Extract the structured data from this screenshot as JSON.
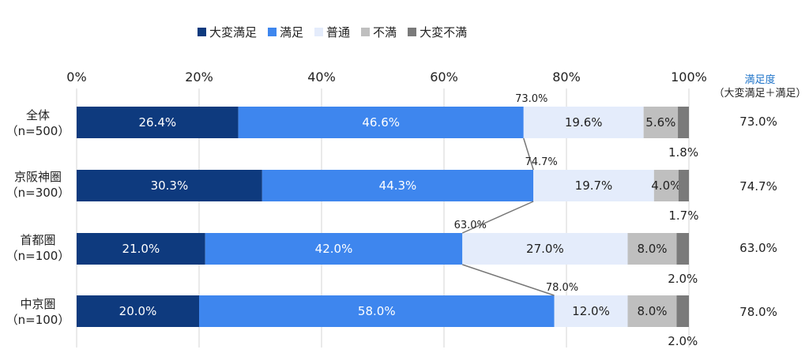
{
  "legend": [
    {
      "name": "大変満足",
      "color": "#0e3a7e"
    },
    {
      "name": "満足",
      "color": "#3e86ee"
    },
    {
      "name": "普通",
      "color": "#e4ecfb"
    },
    {
      "name": "不満",
      "color": "#bfbfbf"
    },
    {
      "name": "大変不満",
      "color": "#7a7a7a"
    }
  ],
  "satisfaction_header": {
    "line1": "満足度",
    "line2": "（大変満足＋満足）"
  },
  "chart_data": {
    "type": "bar",
    "orientation": "horizontal",
    "stacked": true,
    "percent_stacked": true,
    "xlim": [
      0,
      100
    ],
    "x_ticks": [
      "0%",
      "20%",
      "40%",
      "60%",
      "80%",
      "100%"
    ],
    "grid": true,
    "legend_position": "top",
    "categories": [
      {
        "line1": "全体",
        "line2": "（n=500）"
      },
      {
        "line1": "京阪神圏",
        "line2": "（n=300）"
      },
      {
        "line1": "首都圏",
        "line2": "（n=100）"
      },
      {
        "line1": "中京圏",
        "line2": "（n=100）"
      }
    ],
    "series": [
      {
        "name": "大変満足",
        "values": [
          26.4,
          30.3,
          21.0,
          20.0
        ],
        "labels": [
          "26.4%",
          "30.3%",
          "21.0%",
          "20.0%"
        ]
      },
      {
        "name": "満足",
        "values": [
          46.6,
          44.3,
          42.0,
          58.0
        ],
        "labels": [
          "46.6%",
          "44.3%",
          "42.0%",
          "58.0%"
        ]
      },
      {
        "name": "普通",
        "values": [
          19.6,
          19.7,
          27.0,
          12.0
        ],
        "labels": [
          "19.6%",
          "19.7%",
          "27.0%",
          "12.0%"
        ]
      },
      {
        "name": "不満",
        "values": [
          5.6,
          4.0,
          8.0,
          8.0
        ],
        "labels": [
          "5.6%",
          "4.0%",
          "8.0%",
          "8.0%"
        ]
      },
      {
        "name": "大変不満",
        "values": [
          1.8,
          1.7,
          2.0,
          2.0
        ],
        "labels": [
          "1.8%",
          "1.7%",
          "2.0%",
          "2.0%"
        ]
      }
    ],
    "cumulative_labels": [
      "73.0%",
      "74.7%",
      "63.0%",
      "78.0%"
    ],
    "satisfaction_values": [
      "73.0%",
      "74.7%",
      "63.0%",
      "78.0%"
    ]
  }
}
